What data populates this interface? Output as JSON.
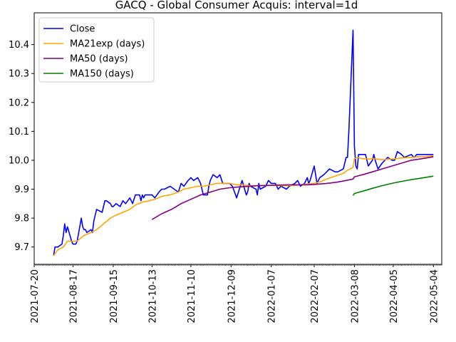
{
  "chart_data": {
    "type": "line",
    "title": "GACQ - Global Consumer Acquis: interval=1d",
    "xlabel": "",
    "ylabel": "",
    "xlim": [
      "2021-07-20",
      "2022-05-10"
    ],
    "ylim": [
      9.64,
      10.51
    ],
    "grid": false,
    "legend_position": "top-left",
    "y_ticks": [
      9.7,
      9.8,
      9.9,
      10.0,
      10.1,
      10.2,
      10.3,
      10.4
    ],
    "y_tick_labels": [
      "9.7",
      "9.8",
      "9.9",
      "10.0",
      "10.1",
      "10.2",
      "10.3",
      "10.4"
    ],
    "x_ticks": [
      "2021-07-20",
      "2021-08-17",
      "2021-09-15",
      "2021-10-13",
      "2021-11-10",
      "2021-12-09",
      "2022-01-07",
      "2022-02-07",
      "2022-03-08",
      "2022-04-05",
      "2022-05-04"
    ],
    "series": [
      {
        "name": "Close",
        "color": "#0000ff",
        "x": [
          "2021-08-03",
          "2021-08-04",
          "2021-08-06",
          "2021-08-09",
          "2021-08-10",
          "2021-08-11",
          "2021-08-12",
          "2021-08-13",
          "2021-08-16",
          "2021-08-17",
          "2021-08-18",
          "2021-08-19",
          "2021-08-20",
          "2021-08-23",
          "2021-08-24",
          "2021-08-25",
          "2021-08-26",
          "2021-08-27",
          "2021-08-30",
          "2021-08-31",
          "2021-09-01",
          "2021-09-02",
          "2021-09-03",
          "2021-09-07",
          "2021-09-08",
          "2021-09-09",
          "2021-09-10",
          "2021-09-13",
          "2021-09-14",
          "2021-09-15",
          "2021-09-17",
          "2021-09-20",
          "2021-09-22",
          "2021-09-24",
          "2021-09-27",
          "2021-09-29",
          "2021-10-01",
          "2021-10-04",
          "2021-10-05",
          "2021-10-06",
          "2021-10-07",
          "2021-10-08",
          "2021-10-11",
          "2021-10-13",
          "2021-10-15",
          "2021-10-18",
          "2021-10-20",
          "2021-10-22",
          "2021-10-26",
          "2021-10-29",
          "2021-11-01",
          "2021-11-03",
          "2021-11-05",
          "2021-11-08",
          "2021-11-10",
          "2021-11-12",
          "2021-11-15",
          "2021-11-17",
          "2021-11-19",
          "2021-11-22",
          "2021-11-23",
          "2021-11-24",
          "2021-11-26",
          "2021-11-29",
          "2021-12-01",
          "2021-12-03",
          "2021-12-06",
          "2021-12-07",
          "2021-12-08",
          "2021-12-10",
          "2021-12-13",
          "2021-12-15",
          "2021-12-17",
          "2021-12-20",
          "2021-12-21",
          "2021-12-22",
          "2021-12-23",
          "2021-12-27",
          "2021-12-28",
          "2021-12-29",
          "2021-12-30",
          "2022-01-03",
          "2022-01-05",
          "2022-01-07",
          "2022-01-10",
          "2022-01-12",
          "2022-01-14",
          "2022-01-18",
          "2022-01-20",
          "2022-01-24",
          "2022-01-26",
          "2022-01-28",
          "2022-01-31",
          "2022-02-02",
          "2022-02-03",
          "2022-02-04",
          "2022-02-07",
          "2022-02-09",
          "2022-02-11",
          "2022-02-14",
          "2022-02-16",
          "2022-02-18",
          "2022-02-22",
          "2022-02-24",
          "2022-02-28",
          "2022-03-02",
          "2022-03-03",
          "2022-03-04",
          "2022-03-07",
          "2022-03-08",
          "2022-03-09",
          "2022-03-10",
          "2022-03-11",
          "2022-03-14",
          "2022-03-16",
          "2022-03-18",
          "2022-03-21",
          "2022-03-22",
          "2022-03-23",
          "2022-03-25",
          "2022-03-28",
          "2022-03-30",
          "2022-04-01",
          "2022-04-04",
          "2022-04-06",
          "2022-04-08",
          "2022-04-11",
          "2022-04-13",
          "2022-04-18",
          "2022-04-20",
          "2022-04-22",
          "2022-04-26",
          "2022-04-28",
          "2022-05-02",
          "2022-05-04"
        ],
        "y": [
          9.67,
          9.7,
          9.7,
          9.71,
          9.74,
          9.78,
          9.75,
          9.77,
          9.72,
          9.71,
          9.71,
          9.71,
          9.72,
          9.8,
          9.77,
          9.76,
          9.76,
          9.75,
          9.76,
          9.75,
          9.79,
          9.81,
          9.83,
          9.82,
          9.84,
          9.86,
          9.86,
          9.85,
          9.84,
          9.84,
          9.85,
          9.84,
          9.86,
          9.85,
          9.87,
          9.85,
          9.88,
          9.88,
          9.86,
          9.88,
          9.87,
          9.88,
          9.88,
          9.88,
          9.87,
          9.89,
          9.9,
          9.9,
          9.91,
          9.9,
          9.89,
          9.92,
          9.91,
          9.93,
          9.94,
          9.93,
          9.94,
          9.92,
          9.88,
          9.88,
          9.91,
          9.93,
          9.95,
          9.94,
          9.95,
          9.92,
          9.92,
          9.92,
          9.92,
          9.91,
          9.87,
          9.9,
          9.93,
          9.88,
          9.89,
          9.92,
          9.91,
          9.9,
          9.88,
          9.92,
          9.9,
          9.91,
          9.93,
          9.92,
          9.92,
          9.9,
          9.91,
          9.9,
          9.91,
          9.92,
          9.93,
          9.91,
          9.92,
          9.94,
          9.92,
          9.93,
          9.98,
          9.92,
          9.94,
          9.95,
          9.96,
          9.97,
          9.96,
          9.96,
          9.97,
          10.01,
          10.01,
          10.1,
          10.45,
          10.05,
          9.98,
          9.97,
          10.02,
          10.02,
          10.02,
          9.98,
          10.0,
          10.02,
          10.0,
          9.97,
          9.99,
          10.0,
          10.01,
          10.0,
          10.0,
          10.03,
          10.02,
          10.01,
          10.02,
          10.01,
          10.02,
          10.02,
          10.02,
          10.02,
          10.02
        ]
      },
      {
        "name": "MA21exp (days)",
        "color": "#ffa500",
        "x": [
          "2021-08-03",
          "2021-08-06",
          "2021-08-10",
          "2021-08-13",
          "2021-08-17",
          "2021-08-20",
          "2021-08-25",
          "2021-08-30",
          "2021-09-03",
          "2021-09-08",
          "2021-09-13",
          "2021-09-17",
          "2021-09-22",
          "2021-09-27",
          "2021-10-01",
          "2021-10-06",
          "2021-10-11",
          "2021-10-15",
          "2021-10-20",
          "2021-10-26",
          "2021-11-01",
          "2021-11-05",
          "2021-11-10",
          "2021-11-15",
          "2021-11-19",
          "2021-11-24",
          "2021-11-29",
          "2021-12-03",
          "2021-12-08",
          "2021-12-13",
          "2021-12-17",
          "2021-12-22",
          "2021-12-28",
          "2022-01-03",
          "2022-01-07",
          "2022-01-12",
          "2022-01-18",
          "2022-01-24",
          "2022-01-28",
          "2022-02-02",
          "2022-02-07",
          "2022-02-11",
          "2022-02-16",
          "2022-02-22",
          "2022-02-28",
          "2022-03-03",
          "2022-03-07",
          "2022-03-08",
          "2022-03-10",
          "2022-03-14",
          "2022-03-18",
          "2022-03-23",
          "2022-03-28",
          "2022-04-01",
          "2022-04-06",
          "2022-04-11",
          "2022-04-18",
          "2022-04-22",
          "2022-04-28",
          "2022-05-04"
        ],
        "y": [
          9.67,
          9.69,
          9.7,
          9.72,
          9.72,
          9.72,
          9.74,
          9.75,
          9.76,
          9.78,
          9.8,
          9.81,
          9.82,
          9.83,
          9.845,
          9.855,
          9.86,
          9.865,
          9.875,
          9.88,
          9.89,
          9.9,
          9.905,
          9.91,
          9.91,
          9.915,
          9.92,
          9.92,
          9.92,
          9.915,
          9.915,
          9.912,
          9.912,
          9.912,
          9.913,
          9.912,
          9.912,
          9.913,
          9.915,
          9.918,
          9.92,
          9.925,
          9.935,
          9.945,
          9.955,
          9.965,
          9.975,
          10.005,
          10.01,
          10.005,
          10.005,
          10.005,
          10.002,
          10.003,
          10.005,
          10.008,
          10.01,
          10.012,
          10.013,
          10.015
        ]
      },
      {
        "name": "MA50 (days)",
        "color": "#800080",
        "x": [
          "2021-10-13",
          "2021-10-20",
          "2021-10-27",
          "2021-11-03",
          "2021-11-10",
          "2021-11-17",
          "2021-11-24",
          "2021-12-01",
          "2021-12-08",
          "2021-12-15",
          "2021-12-22",
          "2021-12-29",
          "2022-01-05",
          "2022-01-12",
          "2022-01-19",
          "2022-01-26",
          "2022-02-02",
          "2022-02-09",
          "2022-02-16",
          "2022-02-23",
          "2022-03-02",
          "2022-03-07",
          "2022-03-08",
          "2022-03-14",
          "2022-03-21",
          "2022-03-28",
          "2022-04-04",
          "2022-04-11",
          "2022-04-18",
          "2022-04-25",
          "2022-05-04"
        ],
        "y": [
          9.795,
          9.815,
          9.83,
          9.85,
          9.865,
          9.88,
          9.89,
          9.9,
          9.905,
          9.908,
          9.91,
          9.912,
          9.913,
          9.914,
          9.915,
          9.915,
          9.915,
          9.917,
          9.92,
          9.924,
          9.93,
          9.935,
          9.943,
          9.95,
          9.96,
          9.97,
          9.98,
          9.99,
          10.0,
          10.005,
          10.012
        ]
      },
      {
        "name": "MA150 (days)",
        "color": "#008000",
        "x": [
          "2022-03-07",
          "2022-03-08",
          "2022-03-14",
          "2022-03-21",
          "2022-03-28",
          "2022-04-04",
          "2022-04-11",
          "2022-04-18",
          "2022-04-25",
          "2022-05-04"
        ],
        "y": [
          9.878,
          9.885,
          9.893,
          9.903,
          9.912,
          9.92,
          9.927,
          9.933,
          9.938,
          9.945
        ]
      }
    ]
  }
}
